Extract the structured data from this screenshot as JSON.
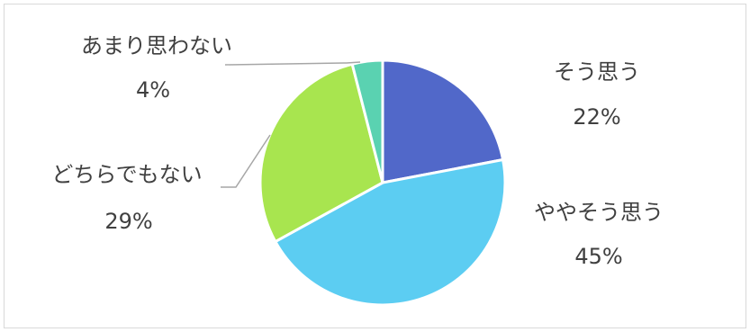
{
  "chart_data": {
    "type": "pie",
    "title": "",
    "slices": [
      {
        "label": "そう思う",
        "value": 22,
        "value_label": "22%",
        "color": "#5168c9"
      },
      {
        "label": "ややそう思う",
        "value": 45,
        "value_label": "45%",
        "color": "#5ccdf2"
      },
      {
        "label": "どちらでもない",
        "value": 29,
        "value_label": "29%",
        "color": "#a8e54f"
      },
      {
        "label": "あまり思わない",
        "value": 4,
        "value_label": "4%",
        "color": "#5ad2b1"
      }
    ],
    "legend": "none",
    "data_labels": "category-and-percent"
  }
}
